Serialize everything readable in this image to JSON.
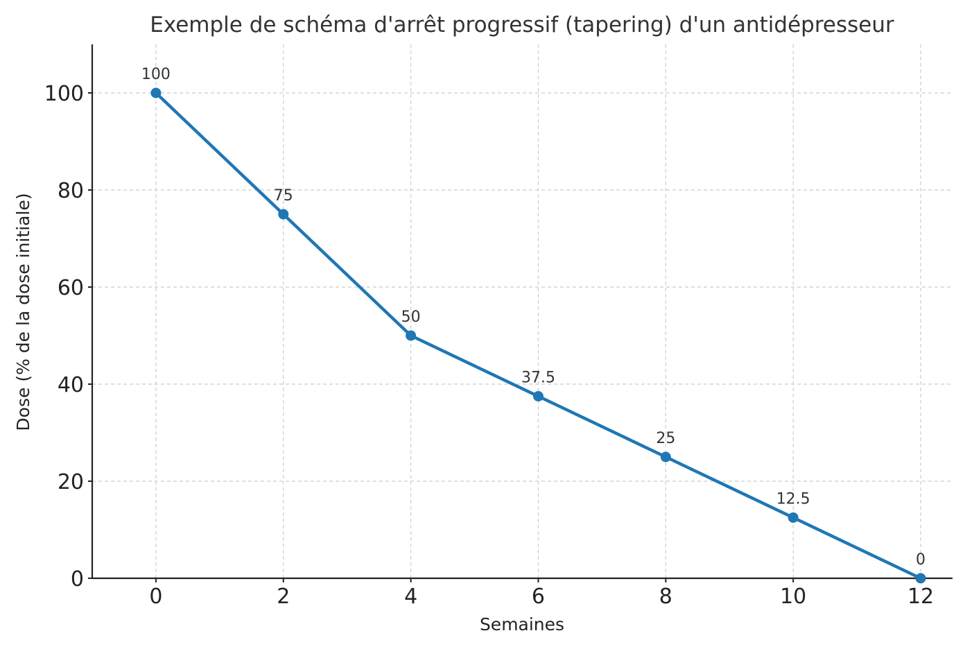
{
  "chart_data": {
    "type": "line",
    "title": "Exemple de schéma d'arrêt progressif (tapering) d'un antidépresseur",
    "xlabel": "Semaines",
    "ylabel": "Dose (% de la dose initiale)",
    "x": [
      0,
      2,
      4,
      6,
      8,
      10,
      12
    ],
    "series": [
      {
        "values": [
          100,
          75,
          50,
          37.5,
          25,
          12.5,
          0
        ],
        "data_labels": [
          "100",
          "75",
          "50",
          "37.5",
          "25",
          "12.5",
          "0"
        ],
        "color": "#1f77b4",
        "marker": "circle"
      }
    ],
    "xlim": [
      -1,
      12.5
    ],
    "ylim": [
      0,
      110
    ],
    "xticks": [
      0,
      2,
      4,
      6,
      8,
      10,
      12
    ],
    "xtick_labels": [
      "0",
      "2",
      "4",
      "6",
      "8",
      "10",
      "12"
    ],
    "yticks": [
      0,
      20,
      40,
      60,
      80,
      100
    ],
    "ytick_labels": [
      "0",
      "20",
      "40",
      "60",
      "80",
      "100"
    ],
    "grid": true,
    "grid_style": "dashed",
    "spines": [
      "left",
      "bottom"
    ]
  }
}
